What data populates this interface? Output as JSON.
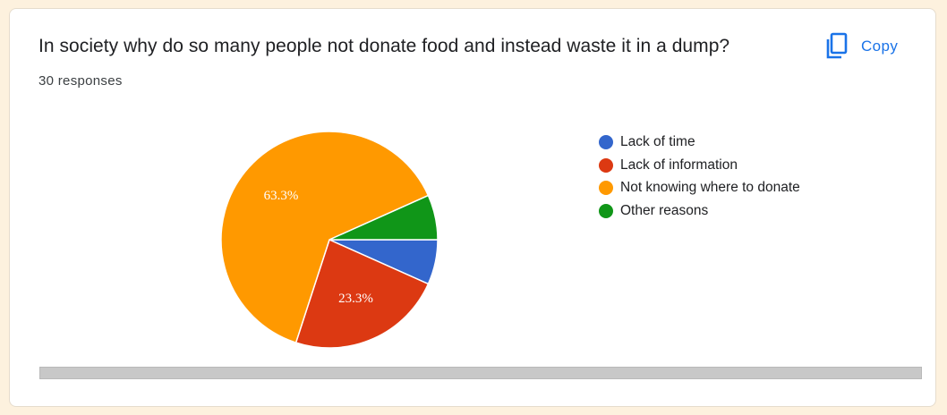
{
  "question": {
    "title": "In society why do so many people not donate food and instead waste it in a dump?",
    "responses": "30 responses"
  },
  "copy_button": {
    "label": "Copy",
    "icon": "copy-icon"
  },
  "colors": {
    "accent": "#1a73e8",
    "page_background": "#fdf1de",
    "card_background": "#ffffff"
  },
  "chart_data": {
    "type": "pie",
    "legend_position": "right",
    "series": [
      {
        "name": "Lack of time",
        "value": 6.7,
        "color": "#3366cc",
        "label": ""
      },
      {
        "name": "Lack of information",
        "value": 23.3,
        "color": "#dc3912",
        "label": "23.3%"
      },
      {
        "name": "Not knowing where to donate",
        "value": 63.3,
        "color": "#ff9900",
        "label": "63.3%"
      },
      {
        "name": "Other reasons",
        "value": 6.7,
        "color": "#109618",
        "label": ""
      }
    ]
  }
}
